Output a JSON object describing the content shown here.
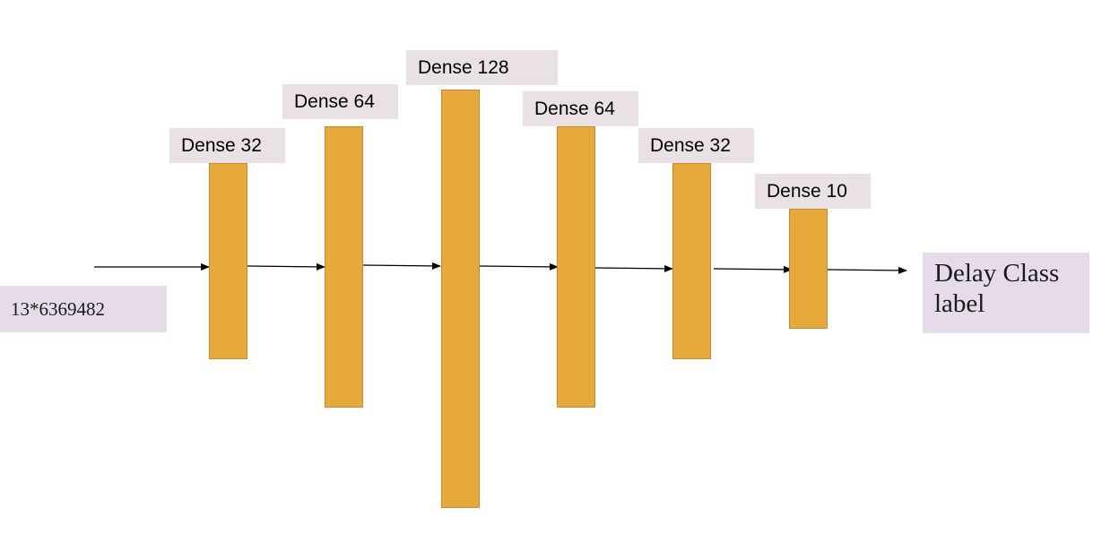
{
  "input": {
    "label": "13*6369482"
  },
  "layers": [
    {
      "label": "Dense 32"
    },
    {
      "label": "Dense 64"
    },
    {
      "label": "Dense 128"
    },
    {
      "label": "Dense 64"
    },
    {
      "label": "Dense 32"
    },
    {
      "label": "Dense 10"
    }
  ],
  "output": {
    "line1": "Delay Class",
    "line2": "label"
  },
  "colors": {
    "layer_fill": "#e8a93b",
    "label_bg": "#e9e1e3",
    "io_bg": "#e6dbe8",
    "arrow": "#000000"
  }
}
